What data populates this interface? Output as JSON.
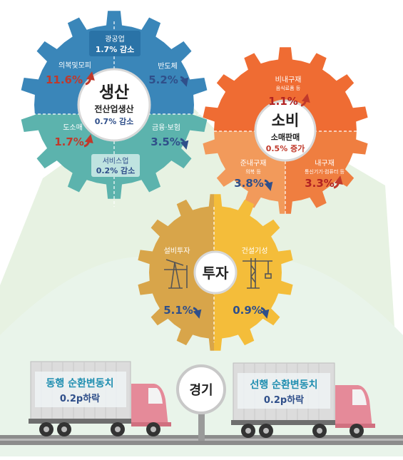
{
  "production": {
    "title": "생산",
    "total_label": "전산업생산",
    "total_value": "0.7% 감소",
    "mining": {
      "label": "광공업",
      "value": "1.7% 감소"
    },
    "semiconductor": {
      "label": "반도체",
      "value": "5.2%"
    },
    "apparel": {
      "label": "의복및모피",
      "value": "11.6%"
    },
    "wholesale": {
      "label": "도소매",
      "value": "1.7%"
    },
    "finance": {
      "label": "금융·보험",
      "value": "3.5%"
    },
    "services": {
      "label": "서비스업",
      "value": "0.2% 감소"
    }
  },
  "consumption": {
    "title": "소비",
    "total_label": "소매판매",
    "total_value": "0.5% 증가",
    "nondurable": {
      "label": "비내구재",
      "sublabel": "음식료품 등",
      "value": "1.1%"
    },
    "semidurable": {
      "label": "준내구재",
      "sublabel": "의복 등",
      "value": "3.8%"
    },
    "durable": {
      "label": "내구재",
      "sublabel": "통신기기·컴퓨터 등",
      "value": "3.3%"
    }
  },
  "investment": {
    "title": "투자",
    "equipment": {
      "label": "설비투자",
      "value": "5.1%"
    },
    "construction": {
      "label": "건설기성",
      "value": "0.9%"
    }
  },
  "economy": {
    "title": "경기",
    "coincident": {
      "label": "동행 순환변동치",
      "value": "0.2p하락"
    },
    "leading": {
      "label": "선행 순환변동치",
      "value": "0.2p하락"
    }
  },
  "colors": {
    "up": "#c0392b",
    "down": "#2f4f8a",
    "production_dark": "#3a86b9",
    "production_light": "#5cb3ad",
    "consumption_dark": "#ef6c33",
    "consumption_light": "#f29a5b",
    "investment_dark": "#d8a54a",
    "investment_light": "#f4bd3a",
    "truck_text": "#1f8eb0"
  }
}
